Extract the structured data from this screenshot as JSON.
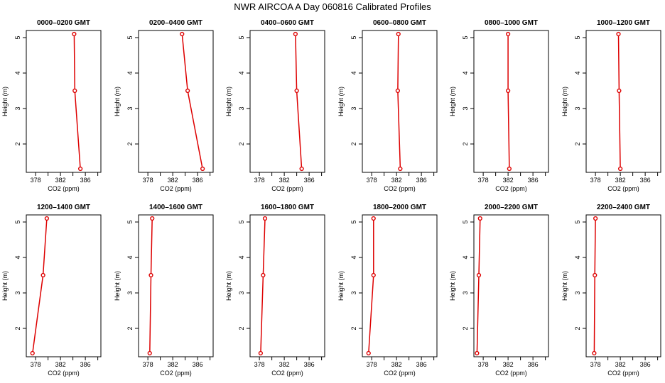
{
  "page": {
    "title": "NWR AIRCOA A  Day 060816  Calibrated Profiles"
  },
  "chart_data": [
    {
      "type": "line",
      "title": "0000–0200 GMT",
      "xlabel": "CO2 (ppm)",
      "ylabel": "Height (m)",
      "xlim": [
        376.5,
        388.5
      ],
      "ylim": [
        1.2,
        5.2
      ],
      "xticks": [
        378,
        382,
        386
      ],
      "yticks": [
        2,
        3,
        4,
        5
      ],
      "points": [
        {
          "x": 385.2,
          "y": 1.3
        },
        {
          "x": 384.3,
          "y": 3.5
        },
        {
          "x": 384.2,
          "y": 5.1
        }
      ]
    },
    {
      "type": "line",
      "title": "0200–0400 GMT",
      "xlabel": "CO2 (ppm)",
      "ylabel": "Height (m)",
      "xlim": [
        376.5,
        388.5
      ],
      "ylim": [
        1.2,
        5.2
      ],
      "xticks": [
        378,
        382,
        386
      ],
      "yticks": [
        2,
        3,
        4,
        5
      ],
      "points": [
        {
          "x": 386.8,
          "y": 1.3
        },
        {
          "x": 384.4,
          "y": 3.5
        },
        {
          "x": 383.5,
          "y": 5.1
        }
      ]
    },
    {
      "type": "line",
      "title": "0400–0600 GMT",
      "xlabel": "CO2 (ppm)",
      "ylabel": "Height (m)",
      "xlim": [
        376.5,
        388.5
      ],
      "ylim": [
        1.2,
        5.2
      ],
      "xticks": [
        378,
        382,
        386
      ],
      "yticks": [
        2,
        3,
        4,
        5
      ],
      "points": [
        {
          "x": 384.8,
          "y": 1.3
        },
        {
          "x": 384.0,
          "y": 3.5
        },
        {
          "x": 383.8,
          "y": 5.1
        }
      ]
    },
    {
      "type": "line",
      "title": "0600–0800 GMT",
      "xlabel": "CO2 (ppm)",
      "ylabel": "Height (m)",
      "xlim": [
        376.5,
        388.5
      ],
      "ylim": [
        1.2,
        5.2
      ],
      "xticks": [
        378,
        382,
        386
      ],
      "yticks": [
        2,
        3,
        4,
        5
      ],
      "points": [
        {
          "x": 382.6,
          "y": 1.3
        },
        {
          "x": 382.2,
          "y": 3.5
        },
        {
          "x": 382.3,
          "y": 5.1
        }
      ]
    },
    {
      "type": "line",
      "title": "0800–1000 GMT",
      "xlabel": "CO2 (ppm)",
      "ylabel": "Height (m)",
      "xlim": [
        376.5,
        388.5
      ],
      "ylim": [
        1.2,
        5.2
      ],
      "xticks": [
        378,
        382,
        386
      ],
      "yticks": [
        2,
        3,
        4,
        5
      ],
      "points": [
        {
          "x": 382.2,
          "y": 1.3
        },
        {
          "x": 382.0,
          "y": 3.5
        },
        {
          "x": 382.0,
          "y": 5.1
        }
      ]
    },
    {
      "type": "line",
      "title": "1000–1200 GMT",
      "xlabel": "CO2 (ppm)",
      "ylabel": "Height (m)",
      "xlim": [
        376.5,
        388.5
      ],
      "ylim": [
        1.2,
        5.2
      ],
      "xticks": [
        378,
        382,
        386
      ],
      "yticks": [
        2,
        3,
        4,
        5
      ],
      "points": [
        {
          "x": 382.0,
          "y": 1.3
        },
        {
          "x": 381.8,
          "y": 3.5
        },
        {
          "x": 381.7,
          "y": 5.1
        }
      ]
    },
    {
      "type": "line",
      "title": "1200–1400 GMT",
      "xlabel": "CO2 (ppm)",
      "ylabel": "Height (m)",
      "xlim": [
        376.5,
        388.5
      ],
      "ylim": [
        1.2,
        5.2
      ],
      "xticks": [
        378,
        382,
        386
      ],
      "yticks": [
        2,
        3,
        4,
        5
      ],
      "points": [
        {
          "x": 377.5,
          "y": 1.3
        },
        {
          "x": 379.2,
          "y": 3.5
        },
        {
          "x": 379.8,
          "y": 5.1
        }
      ]
    },
    {
      "type": "line",
      "title": "1400–1600 GMT",
      "xlabel": "CO2 (ppm)",
      "ylabel": "Height (m)",
      "xlim": [
        376.5,
        388.5
      ],
      "ylim": [
        1.2,
        5.2
      ],
      "xticks": [
        378,
        382,
        386
      ],
      "yticks": [
        2,
        3,
        4,
        5
      ],
      "points": [
        {
          "x": 378.3,
          "y": 1.3
        },
        {
          "x": 378.5,
          "y": 3.5
        },
        {
          "x": 378.7,
          "y": 5.1
        }
      ]
    },
    {
      "type": "line",
      "title": "1600–1800 GMT",
      "xlabel": "CO2 (ppm)",
      "ylabel": "Height (m)",
      "xlim": [
        376.5,
        388.5
      ],
      "ylim": [
        1.2,
        5.2
      ],
      "xticks": [
        378,
        382,
        386
      ],
      "yticks": [
        2,
        3,
        4,
        5
      ],
      "points": [
        {
          "x": 378.2,
          "y": 1.3
        },
        {
          "x": 378.6,
          "y": 3.5
        },
        {
          "x": 378.9,
          "y": 5.1
        }
      ]
    },
    {
      "type": "line",
      "title": "1800–2000 GMT",
      "xlabel": "CO2 (ppm)",
      "ylabel": "Height (m)",
      "xlim": [
        376.5,
        388.5
      ],
      "ylim": [
        1.2,
        5.2
      ],
      "xticks": [
        378,
        382,
        386
      ],
      "yticks": [
        2,
        3,
        4,
        5
      ],
      "points": [
        {
          "x": 377.5,
          "y": 1.3
        },
        {
          "x": 378.3,
          "y": 3.5
        },
        {
          "x": 378.3,
          "y": 5.1
        }
      ]
    },
    {
      "type": "line",
      "title": "2000–2200 GMT",
      "xlabel": "CO2 (ppm)",
      "ylabel": "Height (m)",
      "xlim": [
        376.5,
        388.5
      ],
      "ylim": [
        1.2,
        5.2
      ],
      "xticks": [
        378,
        382,
        386
      ],
      "yticks": [
        2,
        3,
        4,
        5
      ],
      "points": [
        {
          "x": 377.0,
          "y": 1.3
        },
        {
          "x": 377.3,
          "y": 3.5
        },
        {
          "x": 377.5,
          "y": 5.1
        }
      ]
    },
    {
      "type": "line",
      "title": "2200–2400 GMT",
      "xlabel": "CO2 (ppm)",
      "ylabel": "Height (m)",
      "xlim": [
        376.5,
        388.5
      ],
      "ylim": [
        1.2,
        5.2
      ],
      "xticks": [
        378,
        382,
        386
      ],
      "yticks": [
        2,
        3,
        4,
        5
      ],
      "points": [
        {
          "x": 377.8,
          "y": 1.3
        },
        {
          "x": 377.9,
          "y": 3.5
        },
        {
          "x": 378.0,
          "y": 5.1
        }
      ]
    }
  ],
  "colors": {
    "series": "#dd0000",
    "axis": "#000000"
  }
}
